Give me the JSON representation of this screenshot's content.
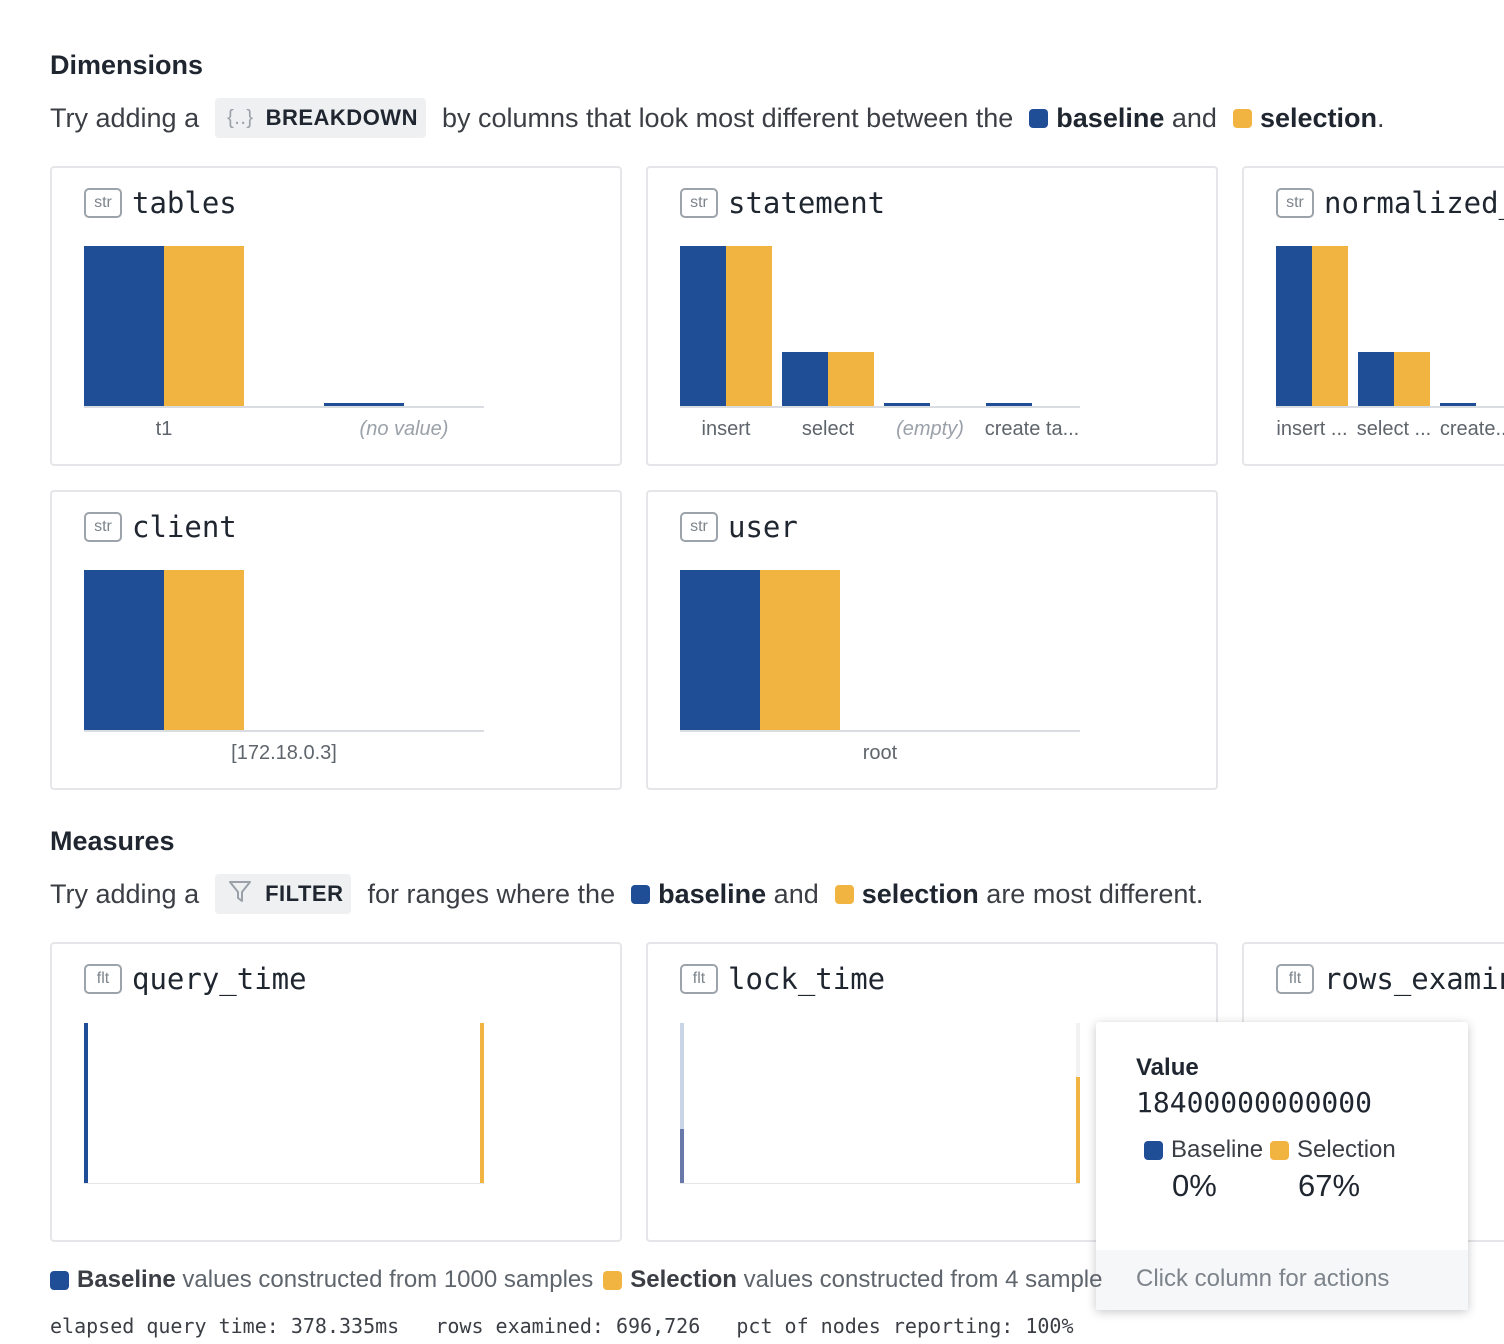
{
  "dimensions": {
    "title": "Dimensions",
    "intro_prefix": "Try adding a",
    "chip_icon": "{..}",
    "chip_label": "BREAKDOWN",
    "intro_middle": "by columns that look most different between the",
    "baseline_label": "baseline",
    "and_text": "and",
    "selection_label": "selection",
    "period": "."
  },
  "measures": {
    "title": "Measures",
    "intro_prefix": "Try adding a",
    "chip_label": "FILTER",
    "intro_middle": "for ranges where the",
    "baseline_label": "baseline",
    "and_text": "and",
    "selection_label": "selection",
    "intro_suffix": "are most different."
  },
  "colors": {
    "baseline": "#1f4e96",
    "selection": "#f2b441"
  },
  "dimension_cards": [
    {
      "type": "str",
      "name": "tables",
      "categories": [
        "t1",
        "(no value)"
      ],
      "baseline": [
        100,
        2
      ],
      "selection": [
        100,
        0
      ]
    },
    {
      "type": "str",
      "name": "statement",
      "categories": [
        "insert",
        "select",
        "(empty)",
        "create ta..."
      ],
      "baseline": [
        100,
        34,
        2,
        2
      ],
      "selection": [
        100,
        34,
        0,
        0
      ]
    },
    {
      "type": "str",
      "name": "normalized_",
      "categories": [
        "insert ...",
        "select ...",
        "create..."
      ],
      "baseline": [
        100,
        34,
        2
      ],
      "selection": [
        100,
        34,
        0
      ]
    },
    {
      "type": "str",
      "name": "client",
      "categories": [
        "[172.18.0.3]"
      ],
      "baseline": [
        100
      ],
      "selection": [
        100
      ]
    },
    {
      "type": "str",
      "name": "user",
      "categories": [
        "root"
      ],
      "baseline": [
        100
      ],
      "selection": [
        100
      ]
    }
  ],
  "measure_cards": [
    {
      "type": "flt",
      "name": "query_time"
    },
    {
      "type": "flt",
      "name": "lock_time"
    },
    {
      "type": "flt",
      "name": "rows_examin"
    }
  ],
  "tooltip": {
    "label": "Value",
    "value": "18400000000000",
    "baseline_name": "Baseline",
    "baseline_pct": "0%",
    "selection_name": "Selection",
    "selection_pct": "67%",
    "footer": "Click column for actions"
  },
  "legend": {
    "baseline_name": "Baseline",
    "baseline_text": "values constructed from 1000 samples",
    "selection_name": "Selection",
    "selection_text": "values constructed from 4 sample"
  },
  "status": {
    "elapsed": "elapsed query time: 378.335ms",
    "rows": "rows examined: 696,726",
    "pct": "pct of nodes reporting: 100%"
  }
}
